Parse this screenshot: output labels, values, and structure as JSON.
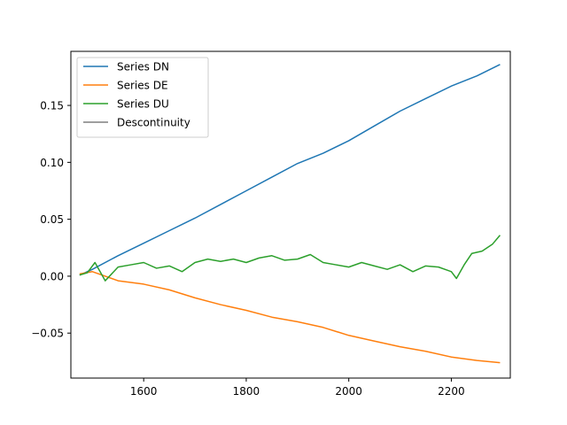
{
  "chart_data": {
    "type": "line",
    "title": "",
    "xlabel": "",
    "ylabel": "",
    "xlim": [
      1458,
      2315
    ],
    "ylim": [
      -0.0895,
      0.1975
    ],
    "xticks": [
      1600,
      1800,
      2000,
      2200
    ],
    "xtick_labels": [
      "1600",
      "1800",
      "2000",
      "2200"
    ],
    "yticks": [
      -0.05,
      0.0,
      0.05,
      0.1,
      0.15
    ],
    "ytick_labels": [
      "−0.05",
      "0.00",
      "0.05",
      "0.10",
      "0.15"
    ],
    "grid": false,
    "legend_position": "top-left",
    "series": [
      {
        "name": "Series DN",
        "color": "#1f77b4",
        "x": [
          1475,
          1500,
          1550,
          1600,
          1650,
          1700,
          1750,
          1800,
          1850,
          1900,
          1950,
          2000,
          2050,
          2100,
          2150,
          2200,
          2250,
          2295
        ],
        "y": [
          0.001,
          0.006,
          0.018,
          0.029,
          0.04,
          0.051,
          0.063,
          0.075,
          0.087,
          0.099,
          0.108,
          0.119,
          0.132,
          0.145,
          0.156,
          0.167,
          0.176,
          0.186
        ]
      },
      {
        "name": "Series DE",
        "color": "#ff7f0e",
        "x": [
          1475,
          1500,
          1550,
          1600,
          1650,
          1700,
          1750,
          1800,
          1850,
          1900,
          1950,
          2000,
          2050,
          2100,
          2150,
          2200,
          2250,
          2295
        ],
        "y": [
          0.002,
          0.004,
          -0.004,
          -0.007,
          -0.012,
          -0.019,
          -0.025,
          -0.03,
          -0.036,
          -0.04,
          -0.045,
          -0.052,
          -0.057,
          -0.062,
          -0.066,
          -0.071,
          -0.074,
          -0.076
        ]
      },
      {
        "name": "Series DU",
        "color": "#2ca02c",
        "x": [
          1475,
          1490,
          1505,
          1525,
          1550,
          1575,
          1600,
          1625,
          1650,
          1675,
          1700,
          1725,
          1750,
          1775,
          1800,
          1825,
          1850,
          1875,
          1900,
          1925,
          1950,
          1975,
          2000,
          2025,
          2050,
          2075,
          2100,
          2125,
          2150,
          2175,
          2200,
          2210,
          2225,
          2240,
          2260,
          2280,
          2295
        ],
        "y": [
          0.001,
          0.003,
          0.012,
          -0.004,
          0.008,
          0.01,
          0.012,
          0.007,
          0.009,
          0.004,
          0.012,
          0.015,
          0.013,
          0.015,
          0.012,
          0.016,
          0.018,
          0.014,
          0.015,
          0.019,
          0.012,
          0.01,
          0.008,
          0.012,
          0.009,
          0.006,
          0.01,
          0.004,
          0.009,
          0.008,
          0.004,
          -0.002,
          0.01,
          0.02,
          0.022,
          0.028,
          0.036
        ]
      },
      {
        "name": "Descontinuity",
        "color": "#7f7f7f",
        "x": [],
        "y": []
      }
    ]
  }
}
